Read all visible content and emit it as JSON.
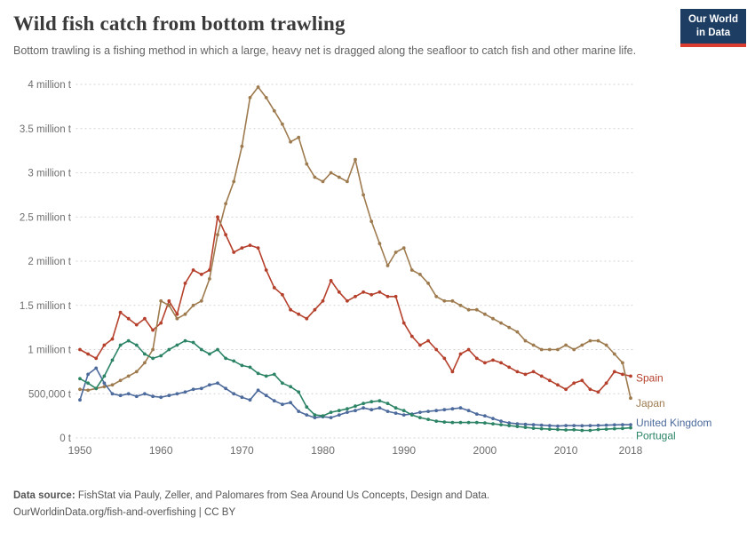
{
  "header": {
    "title": "Wild fish catch from bottom trawling",
    "subtitle": "Bottom trawling is a fishing method in which a large, heavy net is dragged along the seafloor to catch fish and other marine life.",
    "logo": {
      "line1": "Our World",
      "line2": "in Data",
      "bg_color": "#1d3d63",
      "accent_color": "#dc3b2f"
    }
  },
  "chart_data": {
    "type": "line",
    "title": "Wild fish catch from bottom trawling",
    "xlabel": "",
    "ylabel": "",
    "unit": "tonnes",
    "ylim": [
      0,
      4000000
    ],
    "ytick_step": 500000,
    "ytick_labels": [
      "0 t",
      "500,000 t",
      "1 million t",
      "1.5 million t",
      "2 million t",
      "2.5 million t",
      "3 million t",
      "3.5 million t",
      "4 million t"
    ],
    "xticks": [
      1950,
      1960,
      1970,
      1980,
      1990,
      2000,
      2010,
      2018
    ],
    "grid": "horizontal-dotted",
    "legend_position": "line-end-labels",
    "x": [
      1950,
      1951,
      1952,
      1953,
      1954,
      1955,
      1956,
      1957,
      1958,
      1959,
      1960,
      1961,
      1962,
      1963,
      1964,
      1965,
      1966,
      1967,
      1968,
      1969,
      1970,
      1971,
      1972,
      1973,
      1974,
      1975,
      1976,
      1977,
      1978,
      1979,
      1980,
      1981,
      1982,
      1983,
      1984,
      1985,
      1986,
      1987,
      1988,
      1989,
      1990,
      1991,
      1992,
      1993,
      1994,
      1995,
      1996,
      1997,
      1998,
      1999,
      2000,
      2001,
      2002,
      2003,
      2004,
      2005,
      2006,
      2007,
      2008,
      2009,
      2010,
      2011,
      2012,
      2013,
      2014,
      2015,
      2016,
      2017,
      2018
    ],
    "series": [
      {
        "name": "Spain",
        "color": "#B5402C",
        "values": [
          1000000,
          950000,
          900000,
          1050000,
          1120000,
          1420000,
          1350000,
          1280000,
          1350000,
          1220000,
          1300000,
          1550000,
          1400000,
          1750000,
          1900000,
          1850000,
          1900000,
          2500000,
          2300000,
          2100000,
          2150000,
          2180000,
          2150000,
          1900000,
          1700000,
          1620000,
          1450000,
          1400000,
          1350000,
          1450000,
          1550000,
          1780000,
          1650000,
          1550000,
          1600000,
          1650000,
          1620000,
          1650000,
          1600000,
          1600000,
          1300000,
          1150000,
          1050000,
          1100000,
          1000000,
          900000,
          750000,
          950000,
          1000000,
          900000,
          850000,
          880000,
          850000,
          800000,
          750000,
          720000,
          750000,
          700000,
          650000,
          600000,
          550000,
          620000,
          650000,
          550000,
          520000,
          620000,
          750000,
          720000,
          700000
        ]
      },
      {
        "name": "Japan",
        "color": "#9E7B4F",
        "values": [
          550000,
          540000,
          560000,
          580000,
          600000,
          650000,
          700000,
          750000,
          850000,
          1000000,
          1550000,
          1500000,
          1350000,
          1400000,
          1500000,
          1550000,
          1800000,
          2300000,
          2650000,
          2900000,
          3300000,
          3850000,
          3970000,
          3850000,
          3700000,
          3550000,
          3350000,
          3400000,
          3100000,
          2950000,
          2900000,
          3000000,
          2950000,
          2900000,
          3150000,
          2750000,
          2450000,
          2200000,
          1950000,
          2100000,
          2150000,
          1900000,
          1850000,
          1750000,
          1600000,
          1550000,
          1550000,
          1500000,
          1450000,
          1450000,
          1400000,
          1350000,
          1300000,
          1250000,
          1200000,
          1100000,
          1050000,
          1000000,
          1000000,
          1000000,
          1050000,
          1000000,
          1050000,
          1100000,
          1100000,
          1050000,
          950000,
          850000,
          450000
        ]
      },
      {
        "name": "United Kingdom",
        "color": "#4C6A9C",
        "values": [
          430000,
          720000,
          790000,
          620000,
          500000,
          480000,
          500000,
          470000,
          500000,
          470000,
          460000,
          480000,
          500000,
          520000,
          550000,
          560000,
          600000,
          620000,
          560000,
          500000,
          460000,
          430000,
          540000,
          480000,
          420000,
          380000,
          400000,
          300000,
          260000,
          230000,
          240000,
          230000,
          260000,
          290000,
          310000,
          340000,
          320000,
          340000,
          300000,
          280000,
          260000,
          270000,
          290000,
          300000,
          310000,
          320000,
          330000,
          340000,
          310000,
          270000,
          250000,
          220000,
          190000,
          170000,
          160000,
          155000,
          150000,
          145000,
          140000,
          135000,
          140000,
          140000,
          138000,
          140000,
          142000,
          145000,
          148000,
          150000,
          150000
        ]
      },
      {
        "name": "Portugal",
        "color": "#2C8465",
        "values": [
          670000,
          620000,
          560000,
          700000,
          880000,
          1050000,
          1100000,
          1050000,
          950000,
          900000,
          930000,
          1000000,
          1050000,
          1100000,
          1080000,
          1000000,
          950000,
          1000000,
          900000,
          870000,
          820000,
          800000,
          730000,
          700000,
          720000,
          620000,
          580000,
          520000,
          350000,
          260000,
          250000,
          290000,
          310000,
          330000,
          360000,
          390000,
          410000,
          420000,
          390000,
          340000,
          310000,
          260000,
          230000,
          210000,
          190000,
          180000,
          175000,
          175000,
          175000,
          175000,
          170000,
          160000,
          150000,
          140000,
          130000,
          120000,
          110000,
          105000,
          100000,
          95000,
          90000,
          92000,
          85000,
          85000,
          95000,
          100000,
          105000,
          108000,
          115000
        ]
      }
    ]
  },
  "footer": {
    "source_label": "Data source:",
    "source_text": " FishStat via Pauly, Zeller, and Palomares from Sea Around Us Concepts, Design and Data.",
    "link_text": "OurWorldinData.org/fish-and-overfishing",
    "license": " | CC BY"
  }
}
